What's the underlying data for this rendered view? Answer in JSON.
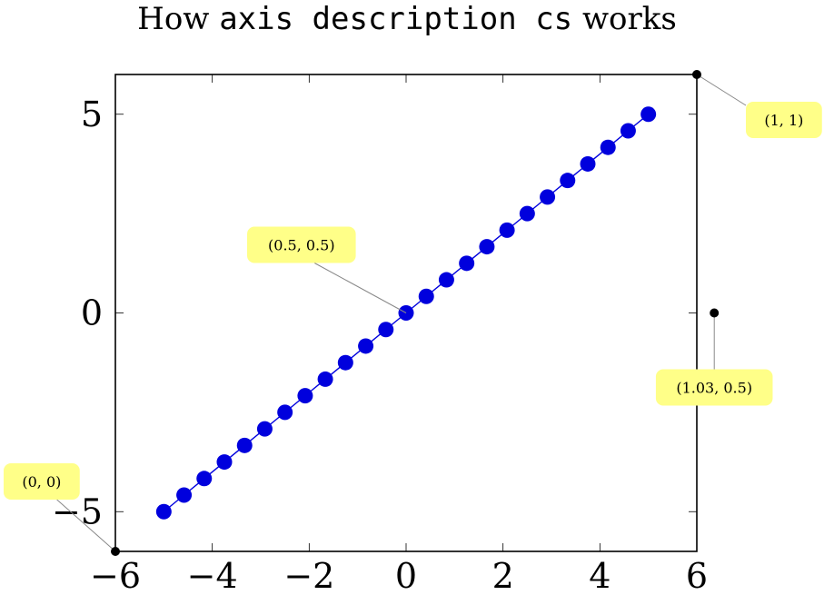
{
  "chart_data": {
    "type": "line",
    "title_parts": [
      {
        "text": "How ",
        "mono": false
      },
      {
        "text": "axis description cs",
        "mono": true
      },
      {
        "text": " works",
        "mono": false
      }
    ],
    "xlabel": "",
    "ylabel": "",
    "xlim": [
      -6,
      6
    ],
    "ylim": [
      -6,
      6
    ],
    "x_ticks": [
      -6,
      -4,
      -2,
      0,
      2,
      4,
      6
    ],
    "x_tick_labels": [
      "−6",
      "−4",
      "−2",
      "0",
      "2",
      "4",
      "6"
    ],
    "y_ticks": [
      -5,
      0,
      5
    ],
    "y_tick_labels": [
      "−5",
      "0",
      "5"
    ],
    "grid": false,
    "legend": "none",
    "series": [
      {
        "color": "#0000dd",
        "marker": "circle",
        "x": [
          -5,
          -4.583,
          -4.167,
          -3.75,
          -3.333,
          -2.917,
          -2.5,
          -2.083,
          -1.667,
          -1.25,
          -0.833,
          -0.417,
          0,
          0.417,
          0.833,
          1.25,
          1.667,
          2.083,
          2.5,
          2.917,
          3.333,
          3.75,
          4.167,
          4.583,
          5
        ],
        "y": [
          -5,
          -4.583,
          -4.167,
          -3.75,
          -3.333,
          -2.917,
          -2.5,
          -2.083,
          -1.667,
          -1.25,
          -0.833,
          -0.417,
          0,
          0.417,
          0.833,
          1.25,
          1.667,
          2.083,
          2.5,
          2.917,
          3.333,
          3.75,
          4.167,
          4.583,
          5
        ]
      }
    ],
    "annotations": [
      {
        "label": "(0, 0)",
        "ax": 0,
        "ay": 0,
        "dot": true,
        "placement": "above-left"
      },
      {
        "label": "(1, 1)",
        "ax": 1,
        "ay": 1,
        "dot": true,
        "placement": "below-right"
      },
      {
        "label": "(0.5, 0.5)",
        "ax": 0.5,
        "ay": 0.5,
        "dot": false,
        "placement": "above-left"
      },
      {
        "label": "(1.03, 0.5)",
        "ax": 1.03,
        "ay": 0.5,
        "dot": true,
        "placement": "below"
      }
    ],
    "annotation_fill": "#ffff88"
  }
}
